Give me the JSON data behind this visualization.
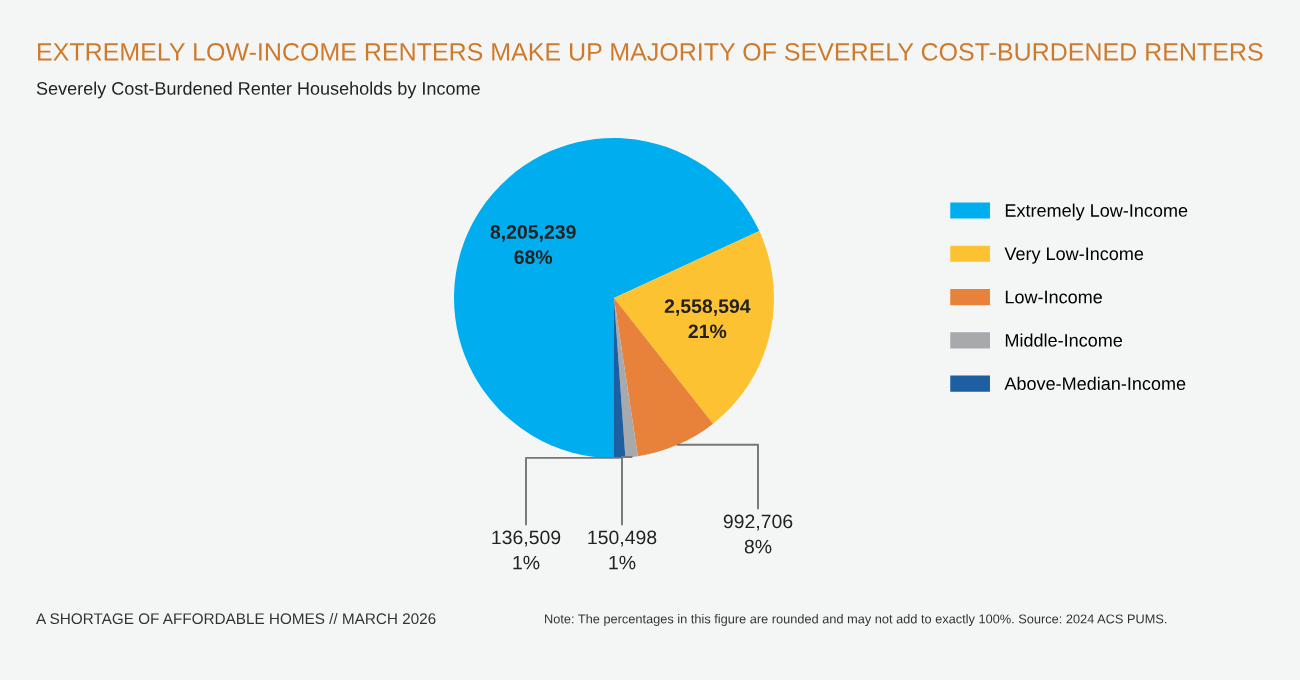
{
  "chart_data": {
    "type": "pie",
    "title": "EXTREMELY LOW-INCOME RENTERS MAKE UP MAJORITY OF SEVERELY COST-BURDENED RENTERS",
    "subtitle": "Severely Cost-Burdened Renter Households by Income",
    "categories": [
      "Extremely Low-Income",
      "Very Low-Income",
      "Low-Income",
      "Middle-Income",
      "Above-Median-Income"
    ],
    "values": [
      8205239,
      2558594,
      992706,
      150498,
      136509
    ],
    "value_labels": [
      "8,205,239\n68%",
      "2,558,594\n21%",
      "992,706\n8%",
      "150,498\n1%",
      "136,509\n1%"
    ],
    "colors": [
      "#00aeef",
      "#fdc232",
      "#e8823a",
      "#a7a9ac",
      "#1d5fa0"
    ],
    "legend": "right",
    "annotations": [
      "A SHORTAGE OF AFFORDABLE HOMES // MARCH 2026",
      "Note: The percentages in this figure are rounded and may not add to exactly 100%. Source: 2024 ACS PUMS."
    ]
  }
}
